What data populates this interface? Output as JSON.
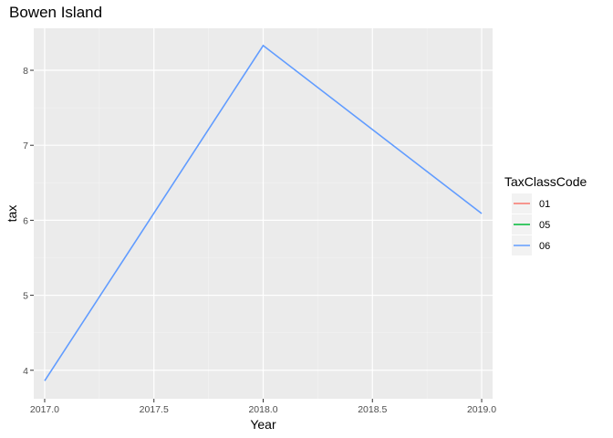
{
  "chart_data": {
    "type": "line",
    "title": "Bowen Island",
    "xlabel": "Year",
    "ylabel": "tax",
    "xlim": [
      2016.95,
      2019.05
    ],
    "ylim": [
      3.62,
      8.56
    ],
    "x_ticks": [
      2017.0,
      2017.5,
      2018.0,
      2018.5,
      2019.0
    ],
    "x_tick_labels": [
      "2017.0",
      "2017.5",
      "2018.0",
      "2018.5",
      "2019.0"
    ],
    "y_ticks": [
      4,
      5,
      6,
      7,
      8
    ],
    "y_tick_labels": [
      "4",
      "5",
      "6",
      "7",
      "8"
    ],
    "grid": true,
    "legend_position": "right",
    "legend": {
      "title": "TaxClassCode",
      "items": [
        {
          "label": "01",
          "color": "#F8766D"
        },
        {
          "label": "05",
          "color": "#00BA38"
        },
        {
          "label": "06",
          "color": "#619CFF"
        }
      ]
    },
    "series": [
      {
        "name": "06",
        "color": "#619CFF",
        "x": [
          2017.0,
          2018.0,
          2019.0
        ],
        "y": [
          3.86,
          8.33,
          6.09
        ]
      }
    ]
  }
}
